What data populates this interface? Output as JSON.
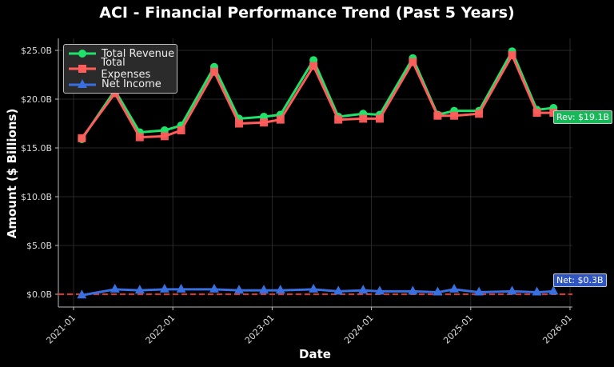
{
  "title": "ACI - Financial Performance Trend (Past 5 Years)",
  "colors": {
    "background": "#000000",
    "revenue": "#1ee26a",
    "expenses": "#ff5c5c",
    "net_income": "#3a6fe0",
    "zero_line": "#e03030",
    "grid": "#333333"
  },
  "legend": [
    {
      "label": "Total Revenue",
      "marker": "circle-icon"
    },
    {
      "label": "Total Expenses",
      "marker": "square-icon"
    },
    {
      "label": "Net Income",
      "marker": "triangle-icon"
    }
  ],
  "annotations": {
    "revenue": "Rev: $19.1B",
    "net": "Net: $0.3B"
  },
  "chart_data": {
    "type": "line",
    "title": "ACI - Financial Performance Trend (Past 5 Years)",
    "xlabel": "Date",
    "ylabel": "Amount ($ Billions)",
    "ylim": [
      -1.3,
      26.3
    ],
    "yticks": [
      "$0.0B",
      "$5.0B",
      "$10.0B",
      "$15.0B",
      "$20.0B",
      "$25.0B"
    ],
    "xticks": [
      "2021-01",
      "2022-01",
      "2023-01",
      "2023-01",
      "2024-01",
      "2025-01",
      "2026-01"
    ],
    "grid": true,
    "legend_position": "upper left",
    "x": [
      "2021-02",
      "2021-06",
      "2021-09",
      "2021-12",
      "2022-02",
      "2022-06",
      "2022-09",
      "2022-12",
      "2023-02",
      "2023-06",
      "2023-09",
      "2023-12",
      "2024-02",
      "2024-06",
      "2024-09",
      "2024-11",
      "2025-02",
      "2025-06",
      "2025-09",
      "2025-11"
    ],
    "series": [
      {
        "name": "Total Revenue",
        "values": [
          15.9,
          20.9,
          16.6,
          16.8,
          17.3,
          23.3,
          18.0,
          18.2,
          18.4,
          24.0,
          18.2,
          18.5,
          18.4,
          24.2,
          18.4,
          18.8,
          18.8,
          24.9,
          18.9,
          19.1
        ]
      },
      {
        "name": "Total Expenses",
        "values": [
          16.0,
          20.6,
          16.1,
          16.2,
          16.8,
          22.8,
          17.5,
          17.6,
          17.9,
          23.4,
          17.9,
          18.0,
          18.0,
          23.8,
          18.3,
          18.3,
          18.5,
          24.5,
          18.6,
          18.6
        ]
      },
      {
        "name": "Net Income",
        "values": [
          -0.1,
          0.5,
          0.4,
          0.5,
          0.5,
          0.5,
          0.4,
          0.4,
          0.4,
          0.5,
          0.3,
          0.4,
          0.3,
          0.3,
          0.2,
          0.5,
          0.2,
          0.3,
          0.2,
          0.3
        ]
      }
    ],
    "annotations": [
      "Rev: $19.1B",
      "Net: $0.3B"
    ],
    "reference_line": {
      "y": 0,
      "style": "dashed",
      "color": "#e03030"
    }
  }
}
